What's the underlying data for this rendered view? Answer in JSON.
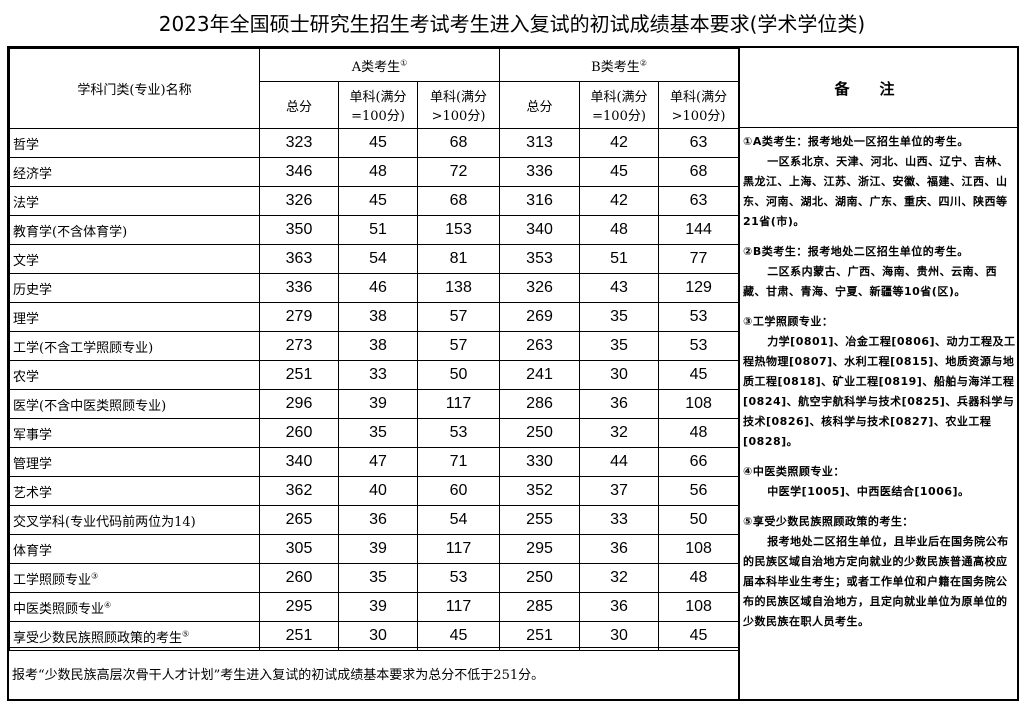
{
  "title": "2023年全国硕士研究生招生考试考生进入复试的初试成绩基本要求(学术学位类)",
  "header": {
    "subject": "学科门类(专业)名称",
    "a_group": "A类考生",
    "a_mark": "①",
    "b_group": "B类考生",
    "b_mark": "②",
    "total": "总分",
    "single100": "单科(满分=100分)",
    "single_gt100": "单科(满分>100分)",
    "remarks": "备注"
  },
  "rows": [
    {
      "name": "哲学",
      "mark": "",
      "a": [
        "323",
        "45",
        "68"
      ],
      "b": [
        "313",
        "42",
        "63"
      ]
    },
    {
      "name": "经济学",
      "mark": "",
      "a": [
        "346",
        "48",
        "72"
      ],
      "b": [
        "336",
        "45",
        "68"
      ]
    },
    {
      "name": "法学",
      "mark": "",
      "a": [
        "326",
        "45",
        "68"
      ],
      "b": [
        "316",
        "42",
        "63"
      ]
    },
    {
      "name": "教育学(不含体育学)",
      "mark": "",
      "a": [
        "350",
        "51",
        "153"
      ],
      "b": [
        "340",
        "48",
        "144"
      ]
    },
    {
      "name": "文学",
      "mark": "",
      "a": [
        "363",
        "54",
        "81"
      ],
      "b": [
        "353",
        "51",
        "77"
      ]
    },
    {
      "name": "历史学",
      "mark": "",
      "a": [
        "336",
        "46",
        "138"
      ],
      "b": [
        "326",
        "43",
        "129"
      ]
    },
    {
      "name": "理学",
      "mark": "",
      "a": [
        "279",
        "38",
        "57"
      ],
      "b": [
        "269",
        "35",
        "53"
      ]
    },
    {
      "name": "工学(不含工学照顾专业)",
      "mark": "",
      "a": [
        "273",
        "38",
        "57"
      ],
      "b": [
        "263",
        "35",
        "53"
      ]
    },
    {
      "name": "农学",
      "mark": "",
      "a": [
        "251",
        "33",
        "50"
      ],
      "b": [
        "241",
        "30",
        "45"
      ]
    },
    {
      "name": "医学(不含中医类照顾专业)",
      "mark": "",
      "a": [
        "296",
        "39",
        "117"
      ],
      "b": [
        "286",
        "36",
        "108"
      ]
    },
    {
      "name": "军事学",
      "mark": "",
      "a": [
        "260",
        "35",
        "53"
      ],
      "b": [
        "250",
        "32",
        "48"
      ]
    },
    {
      "name": "管理学",
      "mark": "",
      "a": [
        "340",
        "47",
        "71"
      ],
      "b": [
        "330",
        "44",
        "66"
      ]
    },
    {
      "name": "艺术学",
      "mark": "",
      "a": [
        "362",
        "40",
        "60"
      ],
      "b": [
        "352",
        "37",
        "56"
      ]
    },
    {
      "name": "交叉学科(专业代码前两位为14)",
      "mark": "",
      "a": [
        "265",
        "36",
        "54"
      ],
      "b": [
        "255",
        "33",
        "50"
      ]
    },
    {
      "name": "体育学",
      "mark": "",
      "a": [
        "305",
        "39",
        "117"
      ],
      "b": [
        "295",
        "36",
        "108"
      ]
    },
    {
      "name": "工学照顾专业",
      "mark": "③",
      "a": [
        "260",
        "35",
        "53"
      ],
      "b": [
        "250",
        "32",
        "48"
      ]
    },
    {
      "name": "中医类照顾专业",
      "mark": "④",
      "a": [
        "295",
        "39",
        "117"
      ],
      "b": [
        "285",
        "36",
        "108"
      ]
    },
    {
      "name": "享受少数民族照顾政策的考生",
      "mark": "⑤",
      "a": [
        "251",
        "30",
        "45"
      ],
      "b": [
        "251",
        "30",
        "45"
      ]
    }
  ],
  "footer": "报考“少数民族高层次骨干人才计划”考生进入复试的初试成绩基本要求为总分不低于251分。",
  "notes": [
    {
      "head": "①A类考生：报考地处一区招生单位的考生。",
      "body": "一区系北京、天津、河北、山西、辽宁、吉林、黑龙江、上海、江苏、浙江、安徽、福建、江西、山东、河南、湖北、湖南、广东、重庆、四川、陕西等21省(市)。"
    },
    {
      "head": "②B类考生：报考地处二区招生单位的考生。",
      "body": "二区系内蒙古、广西、海南、贵州、云南、西藏、甘肃、青海、宁夏、新疆等10省(区)。"
    },
    {
      "head": "③工学照顾专业：",
      "body": "力学[0801]、冶金工程[0806]、动力工程及工程热物理[0807]、水利工程[0815]、地质资源与地质工程[0818]、矿业工程[0819]、船舶与海洋工程[0824]、航空宇航科学与技术[0825]、兵器科学与技术[0826]、核科学与技术[0827]、农业工程[0828]。"
    },
    {
      "head": "④中医类照顾专业：",
      "body": "中医学[1005]、中西医结合[1006]。"
    },
    {
      "head": "⑤享受少数民族照顾政策的考生：",
      "body": "报考地处二区招生单位，且毕业后在国务院公布的民族区域自治地方定向就业的少数民族普通高校应届本科毕业生考生；或者工作单位和户籍在国务院公布的民族区域自治地方，且定向就业单位为原单位的少数民族在职人员考生。"
    }
  ]
}
